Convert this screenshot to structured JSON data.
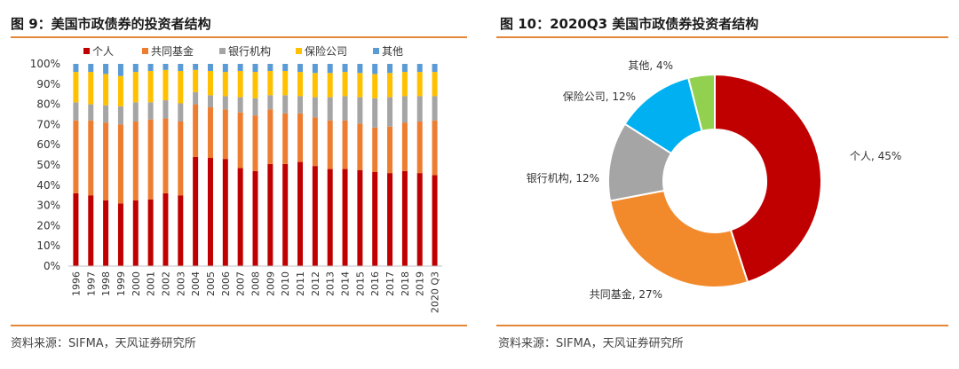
{
  "left_panel": {
    "title": "图 9：美国市政债券的投资者结构",
    "source": "资料来源：SIFMA，天风证券研究所"
  },
  "right_panel": {
    "title": "图 10：2020Q3 美国市政债券投资者结构",
    "source": "资料来源：SIFMA，天风证券研究所"
  },
  "colors": {
    "个人": "#c00000",
    "共同基金": "#ed7d31",
    "银行机构": "#a5a5a5",
    "保险公司": "#ffc000",
    "其他": "#5b9bd5",
    "pie_个人": "#c00000",
    "pie_共同基金": "#f28a2b",
    "pie_银行机构": "#a5a5a5",
    "pie_保险公司": "#00b0f0",
    "pie_其他": "#92d050",
    "rule": "#e3873a"
  },
  "chart_data": [
    {
      "type": "bar",
      "stacked": true,
      "title": "美国市政债券的投资者结构",
      "categories": [
        "1996",
        "1997",
        "1998",
        "1999",
        "2000",
        "2001",
        "2002",
        "2003",
        "2004",
        "2005",
        "2006",
        "2007",
        "2008",
        "2009",
        "2010",
        "2011",
        "2012",
        "2013",
        "2014",
        "2015",
        "2016",
        "2017",
        "2018",
        "2019",
        "2020 Q3"
      ],
      "series": [
        {
          "name": "个人",
          "values": [
            36,
            35,
            32.5,
            31,
            32.5,
            33,
            36,
            35,
            54,
            53.5,
            53,
            48.5,
            47,
            50.5,
            50.5,
            51.5,
            49.5,
            48,
            48,
            47.5,
            46.5,
            46,
            47,
            46,
            45
          ]
        },
        {
          "name": "共同基金",
          "values": [
            36,
            37,
            38.5,
            39,
            39,
            39.5,
            37,
            36.5,
            26,
            25,
            24.5,
            27.5,
            27.5,
            27,
            25,
            24,
            24,
            24,
            24,
            23,
            22,
            23,
            24,
            25.5,
            27
          ]
        },
        {
          "name": "银行机构",
          "values": [
            9,
            8,
            8.5,
            9,
            9.5,
            8.5,
            9,
            9,
            6,
            6,
            6.5,
            7.5,
            8.5,
            7,
            9,
            8.5,
            10,
            11.5,
            12,
            13,
            14.5,
            14.5,
            13,
            12.5,
            12
          ]
        },
        {
          "name": "保险公司",
          "values": [
            15,
            16,
            15.5,
            15,
            15,
            15.5,
            15,
            16,
            11,
            12,
            12,
            13,
            13,
            12,
            12,
            12,
            12,
            12,
            12,
            12,
            12,
            12,
            12,
            12,
            12
          ]
        },
        {
          "name": "其他",
          "values": [
            4,
            4,
            5,
            6,
            4,
            3.5,
            3,
            3.5,
            3,
            3.5,
            4,
            3.5,
            4,
            3.5,
            3.5,
            4,
            4.5,
            4.5,
            4,
            4.5,
            5,
            4.5,
            4,
            4,
            4
          ]
        }
      ],
      "ylim": [
        0,
        100
      ],
      "yticks": [
        "0%",
        "10%",
        "20%",
        "30%",
        "40%",
        "50%",
        "60%",
        "70%",
        "80%",
        "90%",
        "100%"
      ],
      "legend": [
        "个人",
        "共同基金",
        "银行机构",
        "保险公司",
        "其他"
      ],
      "legend_position": "top"
    },
    {
      "type": "pie",
      "donut": true,
      "title": "2020Q3 美国市政债券投资者结构",
      "slices": [
        {
          "name": "个人",
          "value": 45,
          "label": "个人, 45%"
        },
        {
          "name": "共同基金",
          "value": 27,
          "label": "共同基金, 27%"
        },
        {
          "name": "银行机构",
          "value": 12,
          "label": "银行机构, 12%"
        },
        {
          "name": "保险公司",
          "value": 12,
          "label": "保险公司, 12%"
        },
        {
          "name": "其他",
          "value": 4,
          "label": "其他, 4%"
        }
      ]
    }
  ]
}
